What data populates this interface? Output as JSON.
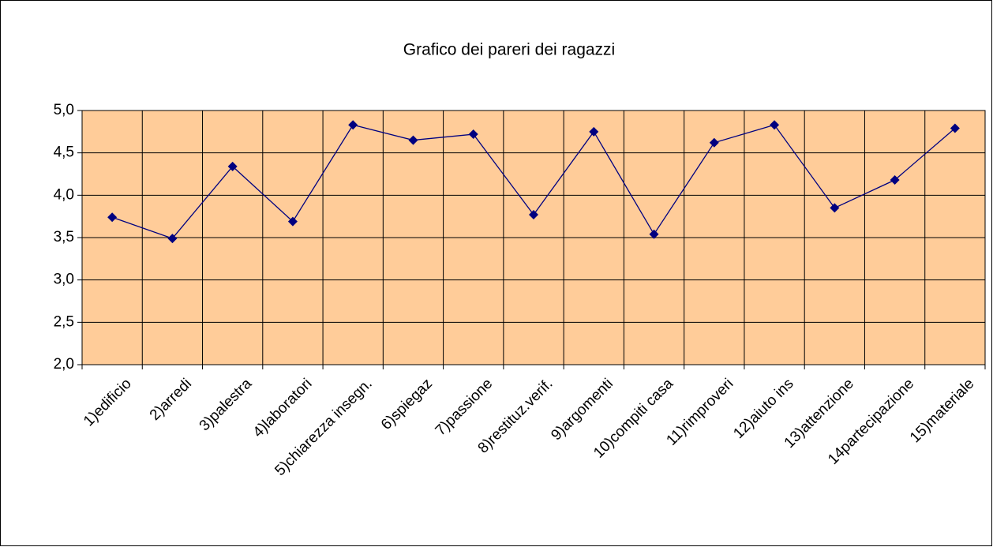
{
  "chart_data": {
    "type": "line",
    "title": "Grafico dei pareri dei ragazzi",
    "categories": [
      "1)edificio",
      "2)arredi",
      "3)palestra",
      "4)laboratori",
      "5)chiarezza insegn.",
      "6)spiegaz",
      "7)passione",
      "8)restituz.verif.",
      "9)argomenti",
      "10)compiti casa",
      "11)rimproveri",
      "12)aiuto ins",
      "13)attenzione",
      "14partecipazione",
      "15)materiale"
    ],
    "series": [
      {
        "color": "#000080",
        "values": [
          3.74,
          3.49,
          4.34,
          3.69,
          4.83,
          4.65,
          4.72,
          3.77,
          4.75,
          3.54,
          4.62,
          4.83,
          3.85,
          4.18,
          4.79
        ]
      }
    ],
    "ylim": [
      2,
      5
    ],
    "yticks": [
      {
        "value": 2,
        "label": "2,0"
      },
      {
        "value": 2.5,
        "label": "2,5"
      },
      {
        "value": 3,
        "label": "3,0"
      },
      {
        "value": 3.5,
        "label": "3,5"
      },
      {
        "value": 4,
        "label": "4,0"
      },
      {
        "value": 4.5,
        "label": "4,5"
      },
      {
        "value": 5,
        "label": "5,0"
      }
    ],
    "grid": true,
    "plot_background": "#FFCC99"
  }
}
